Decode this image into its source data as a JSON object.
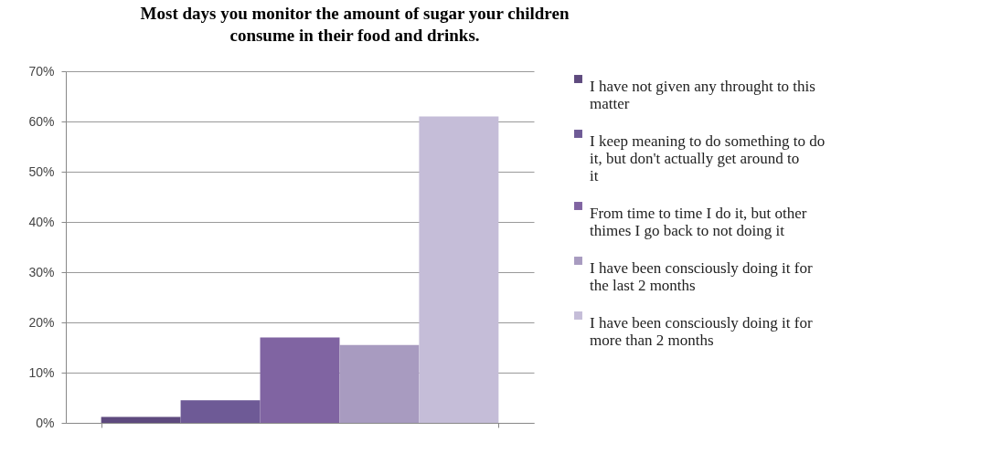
{
  "chart_data": {
    "type": "bar",
    "title": "Most days you monitor the amount of sugar your children consume in their food and drinks.",
    "categories": [
      null
    ],
    "series": [
      {
        "name": "I have not given any throught to this matter",
        "color": "#5e4a7e",
        "values": [
          1.2
        ]
      },
      {
        "name": "I keep meaning to do something to do it, but don't actually get around to it",
        "color": "#6e5a96",
        "values": [
          4.5
        ]
      },
      {
        "name": "From time to time I do it, but other thimes I go back to not doing it",
        "color": "#8064a2",
        "values": [
          17
        ]
      },
      {
        "name": "I have been consciously doing it for the last 2 months",
        "color": "#a89bc0",
        "values": [
          15.5
        ]
      },
      {
        "name": "I have been consciously doing it for more than 2 months",
        "color": "#c5bdd8",
        "values": [
          61
        ]
      }
    ],
    "ylim": [
      0,
      70
    ],
    "yticks": [
      {
        "value": 0,
        "label": "0%"
      },
      {
        "value": 10,
        "label": "10%"
      },
      {
        "value": 20,
        "label": "20%"
      },
      {
        "value": 30,
        "label": "30%"
      },
      {
        "value": 40,
        "label": "40%"
      },
      {
        "value": 50,
        "label": "50%"
      },
      {
        "value": 60,
        "label": "60%"
      },
      {
        "value": 70,
        "label": "70%"
      }
    ],
    "grid": "y",
    "legend": "right"
  }
}
